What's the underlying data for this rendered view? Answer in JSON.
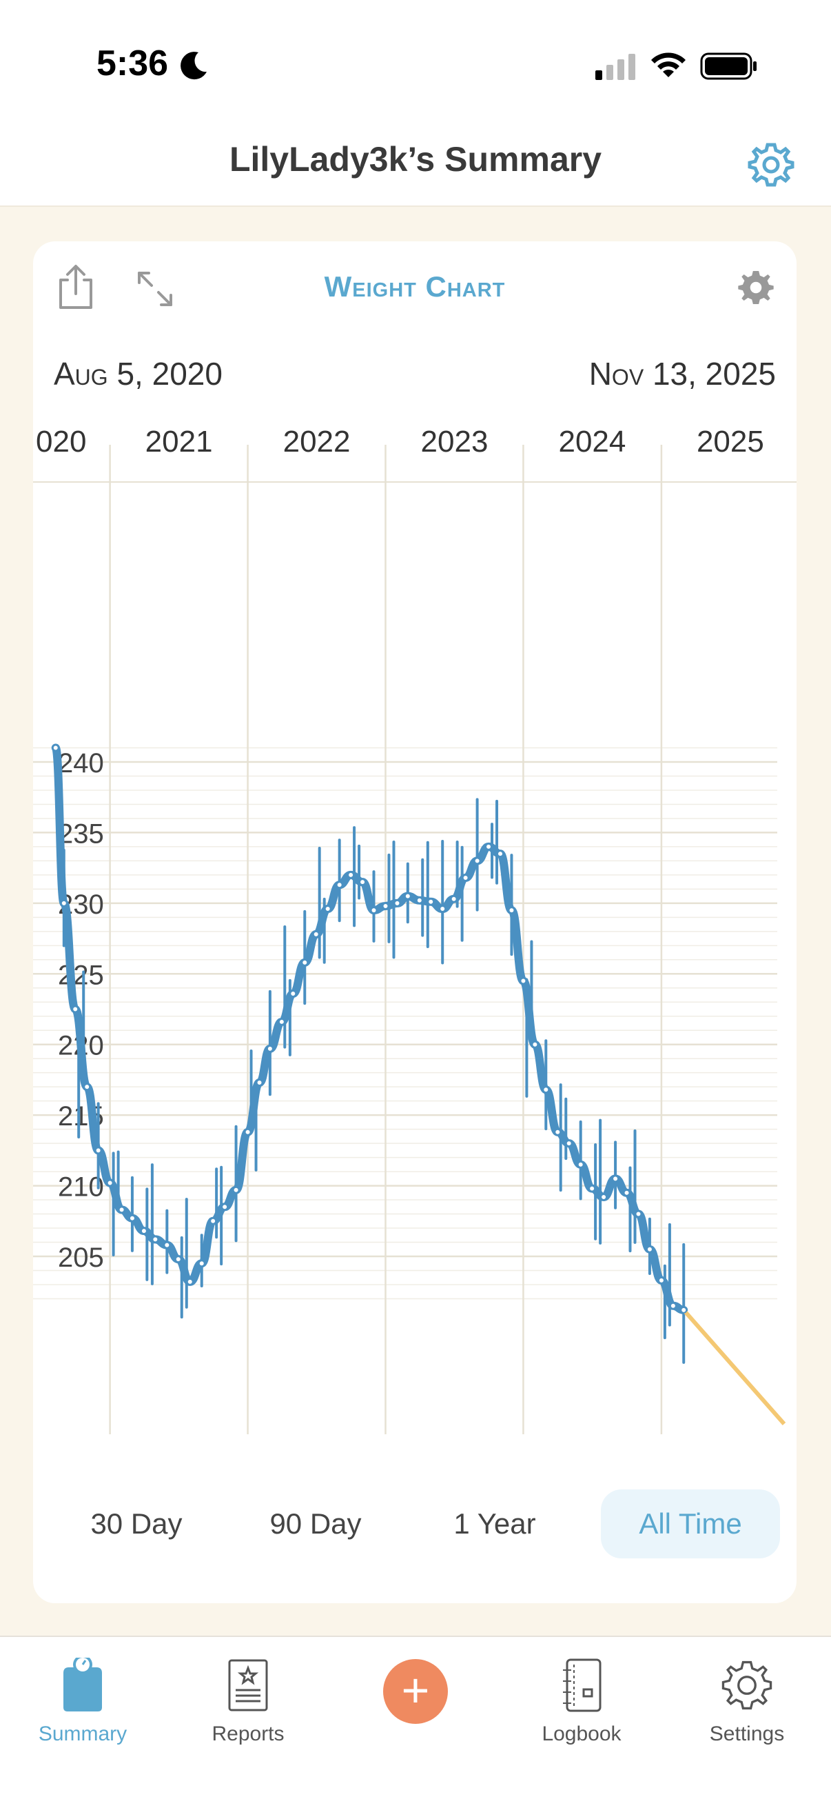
{
  "status": {
    "time": "5:36"
  },
  "header": {
    "title": "LilyLady3k’s Summary"
  },
  "card": {
    "title": "Weight Chart",
    "date_start": "Aug 5, 2020",
    "date_end": "Nov 13, 2025"
  },
  "chart_data": {
    "type": "line",
    "x_tick_labels": [
      "020",
      "2021",
      "2022",
      "2023",
      "2024",
      "2025"
    ],
    "y_tick_labels": [
      "240",
      "235",
      "230",
      "225",
      "220",
      "215",
      "210",
      "205"
    ],
    "ylim": [
      201,
      242
    ],
    "xlim": [
      "2020-08-05",
      "2025-11-13"
    ],
    "series": [
      {
        "x": [
          "2020-08-10",
          "2020-09-01",
          "2020-10-01",
          "2020-11-01",
          "2020-12-01",
          "2021-01-01",
          "2021-02-01",
          "2021-03-01",
          "2021-04-01",
          "2021-05-01",
          "2021-06-01",
          "2021-07-01",
          "2021-08-01",
          "2021-09-01",
          "2021-10-01",
          "2021-11-01",
          "2021-12-01",
          "2022-01-01",
          "2022-02-01",
          "2022-03-01",
          "2022-04-01",
          "2022-05-01",
          "2022-06-01",
          "2022-07-01",
          "2022-08-01",
          "2022-09-01",
          "2022-10-01",
          "2022-11-01",
          "2022-12-01",
          "2023-01-01",
          "2023-02-01",
          "2023-03-01",
          "2023-04-01",
          "2023-05-01",
          "2023-06-01",
          "2023-07-01",
          "2023-08-01",
          "2023-09-01",
          "2023-10-01",
          "2023-11-01",
          "2023-12-01",
          "2024-01-01",
          "2024-02-01",
          "2024-03-01",
          "2024-04-01",
          "2024-05-01",
          "2024-06-01",
          "2024-07-01",
          "2024-08-01",
          "2024-09-01",
          "2024-10-01",
          "2024-11-01",
          "2024-12-01",
          "2025-01-01",
          "2025-02-01",
          "2025-03-01",
          "2025-04-01",
          "2025-05-01",
          "2025-06-01",
          "2025-07-01",
          "2025-08-01",
          "2025-09-01",
          "2025-10-01",
          "2025-11-10"
        ],
        "y": [
          241,
          230,
          222.5,
          217,
          212.5,
          210.2,
          208.3,
          207.7,
          206.8,
          206.2,
          205.8,
          204.8,
          203.2,
          204.5,
          207.5,
          208.5,
          209.7,
          213.8,
          217.3,
          219.7,
          221.6,
          223.6,
          225.8,
          227.8,
          229.6,
          231.3,
          232,
          231.5,
          229.5,
          229.8,
          230,
          230.5,
          230.2,
          230.1,
          229.6,
          230.3,
          231.8,
          233,
          234,
          233.5,
          229.5,
          224.5,
          220,
          216.8,
          213.8,
          213,
          211.5,
          209.8,
          209.2,
          210.5,
          209.5,
          208,
          205.5,
          203.3,
          201.5,
          201.2,
          201,
          201,
          201,
          201,
          201,
          201,
          201,
          201
        ]
      }
    ],
    "error_bars": true,
    "grid": true
  },
  "ranges": [
    "30 Day",
    "90 Day",
    "1 Year",
    "All Time"
  ],
  "active_range": "All Time",
  "tabs": [
    {
      "label": "Summary",
      "icon": "scale-icon"
    },
    {
      "label": "Reports",
      "icon": "report-icon"
    },
    {
      "label": "Logbook",
      "icon": "logbook-icon"
    },
    {
      "label": "Settings",
      "icon": "gear-icon"
    }
  ],
  "colors": {
    "accent": "#5aa8cf",
    "line": "#4a90c2",
    "add": "#ef8a60",
    "background": "#faf5ea"
  }
}
